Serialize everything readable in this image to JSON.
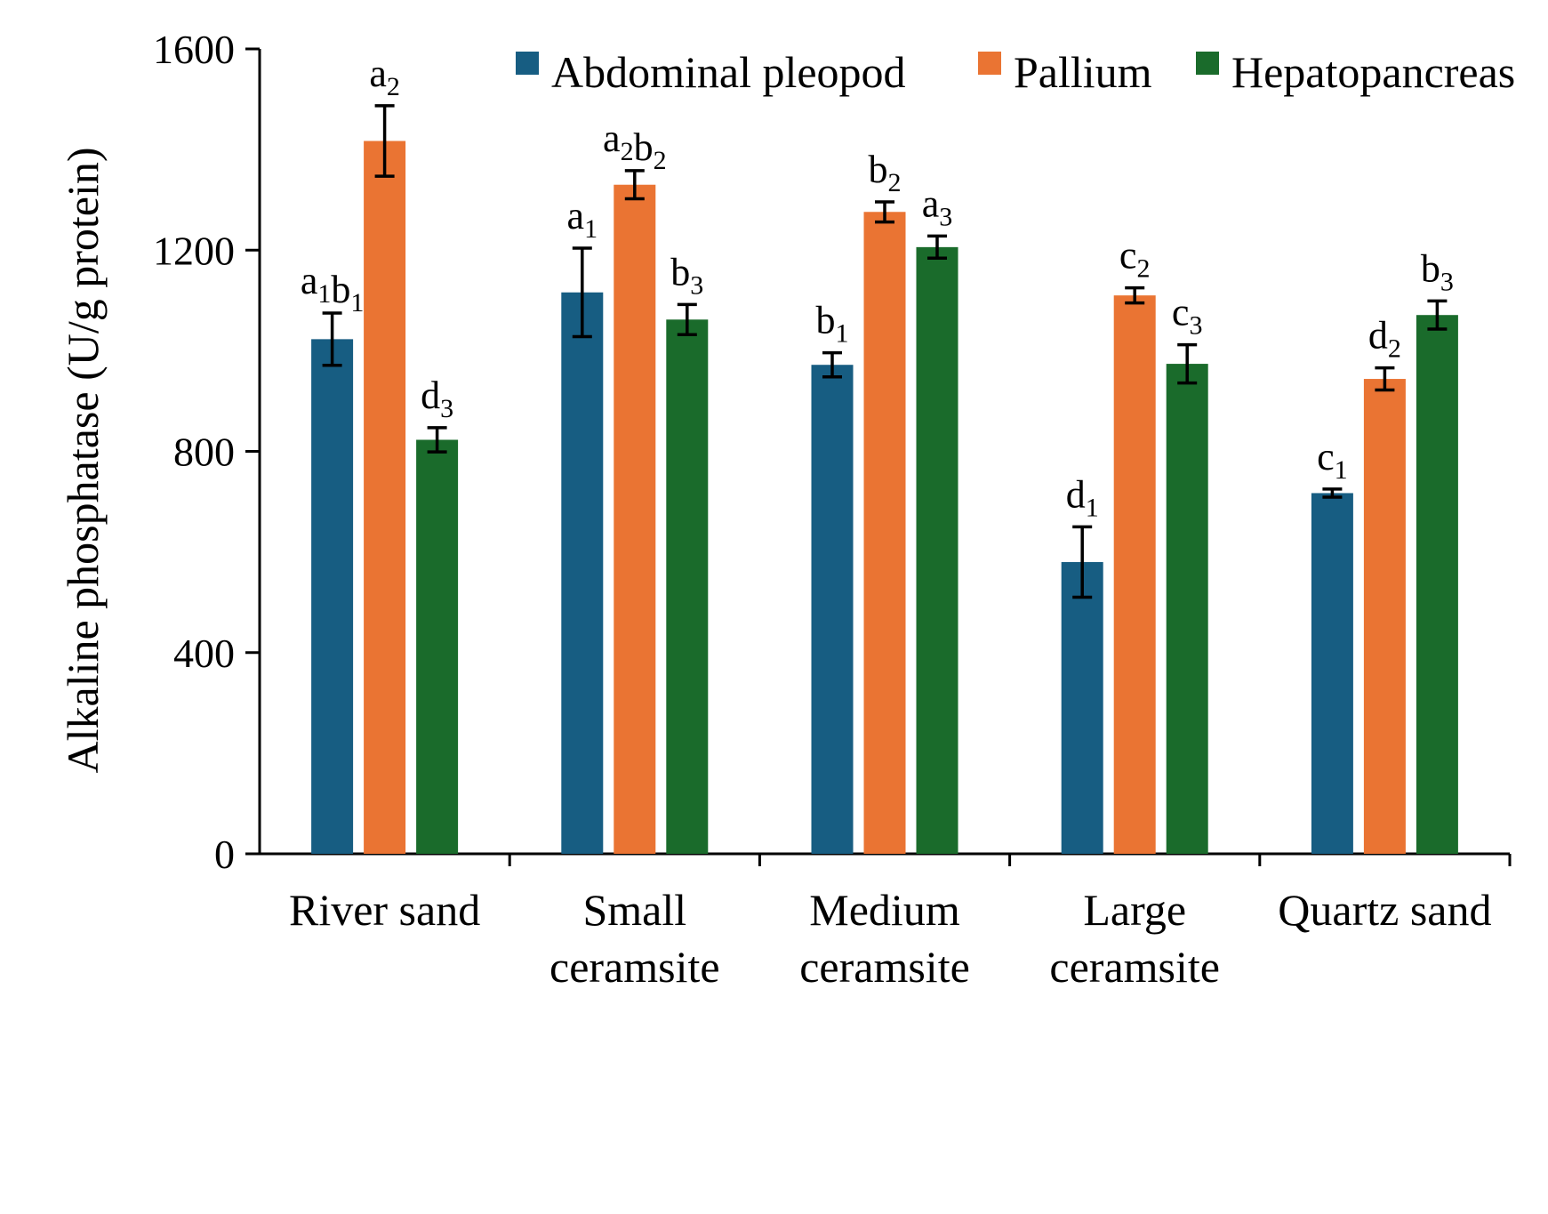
{
  "chart_data": {
    "type": "bar",
    "title": "",
    "xlabel": "",
    "ylabel": "Alkaline phosphatase (U/g protein)",
    "ylim": [
      0,
      1600
    ],
    "yticks": [
      0,
      400,
      800,
      1200,
      1600
    ],
    "grid": false,
    "legend_position": "top",
    "categories": [
      [
        "River sand"
      ],
      [
        "Small",
        "ceramsite"
      ],
      [
        "Medium",
        "ceramsite"
      ],
      [
        "Large",
        "ceramsite"
      ],
      [
        "Quartz sand"
      ]
    ],
    "series": [
      {
        "name": "Abdominal pleopod",
        "color": "#175d82",
        "values": [
          1023,
          1116,
          972,
          580,
          717
        ],
        "errors": [
          52,
          88,
          24,
          70,
          8
        ],
        "labels": [
          [
            [
              "a",
              "1"
            ],
            [
              "b",
              "1"
            ]
          ],
          [
            [
              "a",
              "1"
            ]
          ],
          [
            [
              "b",
              "1"
            ]
          ],
          [
            [
              "d",
              "1"
            ]
          ],
          [
            [
              "c",
              "1"
            ]
          ]
        ]
      },
      {
        "name": "Pallium",
        "color": "#ea7433",
        "values": [
          1417,
          1330,
          1276,
          1110,
          944
        ],
        "errors": [
          70,
          28,
          20,
          15,
          22
        ],
        "labels": [
          [
            [
              "a",
              "2"
            ]
          ],
          [
            [
              "a",
              "2"
            ],
            [
              "b",
              "2"
            ]
          ],
          [
            [
              "b",
              "2"
            ]
          ],
          [
            [
              "c",
              "2"
            ]
          ],
          [
            [
              "d",
              "2"
            ]
          ]
        ]
      },
      {
        "name": "Hepatopancreas",
        "color": "#1a6b2b",
        "values": [
          823,
          1062,
          1206,
          974,
          1071
        ],
        "errors": [
          24,
          30,
          22,
          38,
          28
        ],
        "labels": [
          [
            [
              "d",
              "3"
            ]
          ],
          [
            [
              "b",
              "3"
            ]
          ],
          [
            [
              "a",
              "3"
            ]
          ],
          [
            [
              "c",
              "3"
            ]
          ],
          [
            [
              "b",
              "3"
            ]
          ]
        ]
      }
    ]
  }
}
